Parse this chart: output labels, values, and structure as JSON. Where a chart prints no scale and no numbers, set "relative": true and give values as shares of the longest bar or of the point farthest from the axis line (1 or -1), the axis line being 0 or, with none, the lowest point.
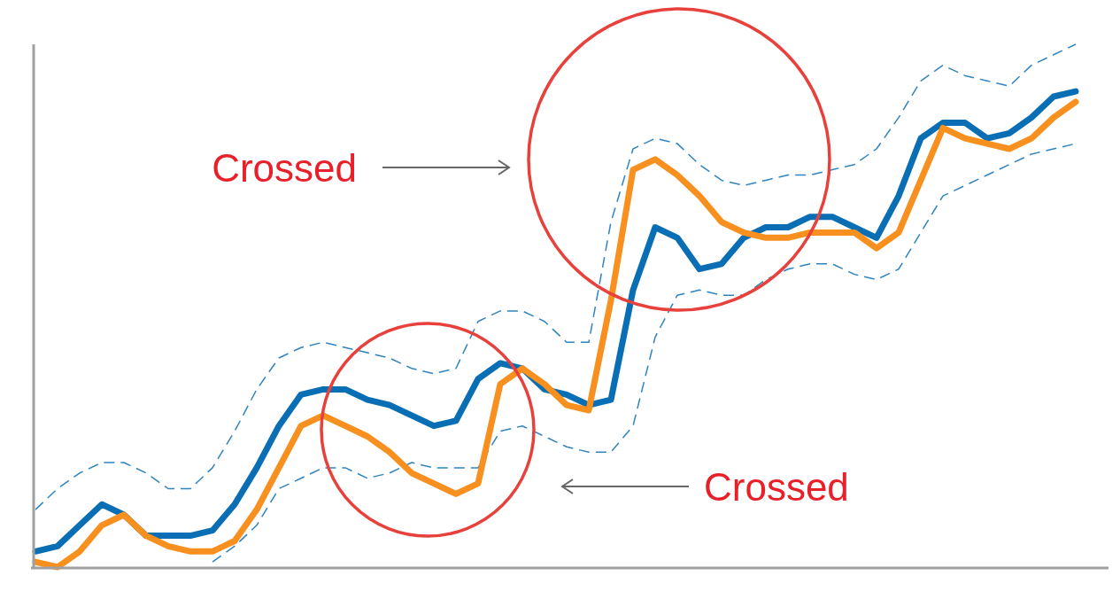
{
  "chart_data": {
    "type": "line",
    "relative": true,
    "categories": [
      null,
      null,
      null,
      null,
      null,
      null,
      null,
      null,
      null,
      null,
      null,
      null,
      null,
      null,
      null,
      null,
      null,
      null,
      null,
      null,
      null,
      null,
      null,
      null,
      null,
      null,
      null,
      null,
      null,
      null,
      null,
      null,
      null,
      null,
      null,
      null,
      null,
      null,
      null,
      null,
      null,
      null,
      null,
      null,
      null,
      null,
      null,
      null
    ],
    "series": [
      {
        "color": "#2f84bf",
        "line_style": "dashed",
        "values": [
          0.11,
          0.15,
          0.18,
          0.2,
          0.2,
          0.18,
          0.15,
          0.15,
          0.19,
          0.26,
          0.34,
          0.4,
          0.42,
          0.43,
          0.42,
          0.41,
          0.4,
          0.38,
          0.37,
          0.38,
          0.47,
          0.49,
          0.49,
          0.47,
          0.43,
          0.43,
          0.66,
          0.8,
          0.82,
          0.81,
          0.77,
          0.74,
          0.73,
          0.74,
          0.75,
          0.75,
          0.76,
          0.77,
          0.8,
          0.86,
          0.93,
          0.96,
          0.94,
          0.93,
          0.92,
          0.96,
          0.98,
          1
        ]
      },
      {
        "color": "#2f84bf",
        "line_style": "dashed",
        "values": [
          null,
          null,
          null,
          null,
          null,
          null,
          null,
          null,
          0.01,
          0.04,
          0.08,
          0.15,
          0.17,
          0.19,
          0.19,
          0.17,
          0.18,
          0.2,
          0.19,
          0.19,
          0.19,
          0.26,
          0.27,
          0.25,
          0.23,
          0.22,
          0.22,
          0.27,
          0.44,
          0.52,
          0.53,
          0.52,
          0.52,
          0.55,
          0.57,
          0.58,
          0.58,
          0.56,
          0.55,
          0.57,
          0.64,
          0.71,
          0.73,
          0.75,
          0.77,
          0.79,
          0.8,
          0.81
        ]
      },
      {
        "color": "#0a6eb4",
        "values": [
          0.03,
          0.04,
          0.08,
          0.12,
          0.1,
          0.06,
          0.06,
          0.06,
          0.07,
          0.12,
          0.19,
          0.27,
          0.33,
          0.34,
          0.34,
          0.32,
          0.31,
          0.29,
          0.27,
          0.28,
          0.36,
          0.39,
          0.38,
          0.34,
          0.33,
          0.31,
          0.32,
          0.53,
          0.65,
          0.63,
          0.57,
          0.58,
          0.63,
          0.65,
          0.65,
          0.67,
          0.67,
          0.65,
          0.63,
          0.71,
          0.82,
          0.85,
          0.85,
          0.82,
          0.83,
          0.86,
          0.9,
          0.91
        ]
      },
      {
        "color": "#f7901e",
        "values": [
          0.01,
          0,
          0.03,
          0.08,
          0.1,
          0.06,
          0.04,
          0.03,
          0.03,
          0.05,
          0.11,
          0.19,
          0.27,
          0.29,
          0.27,
          0.25,
          0.22,
          0.18,
          0.16,
          0.14,
          0.16,
          0.35,
          0.38,
          0.35,
          0.31,
          0.3,
          0.51,
          0.76,
          0.78,
          0.75,
          0.71,
          0.66,
          0.64,
          0.63,
          0.63,
          0.64,
          0.64,
          0.64,
          0.61,
          0.64,
          0.74,
          0.84,
          0.82,
          0.81,
          0.8,
          0.82,
          0.86,
          0.89
        ]
      }
    ],
    "annotations": [
      "Crossed",
      "Crossed"
    ]
  }
}
